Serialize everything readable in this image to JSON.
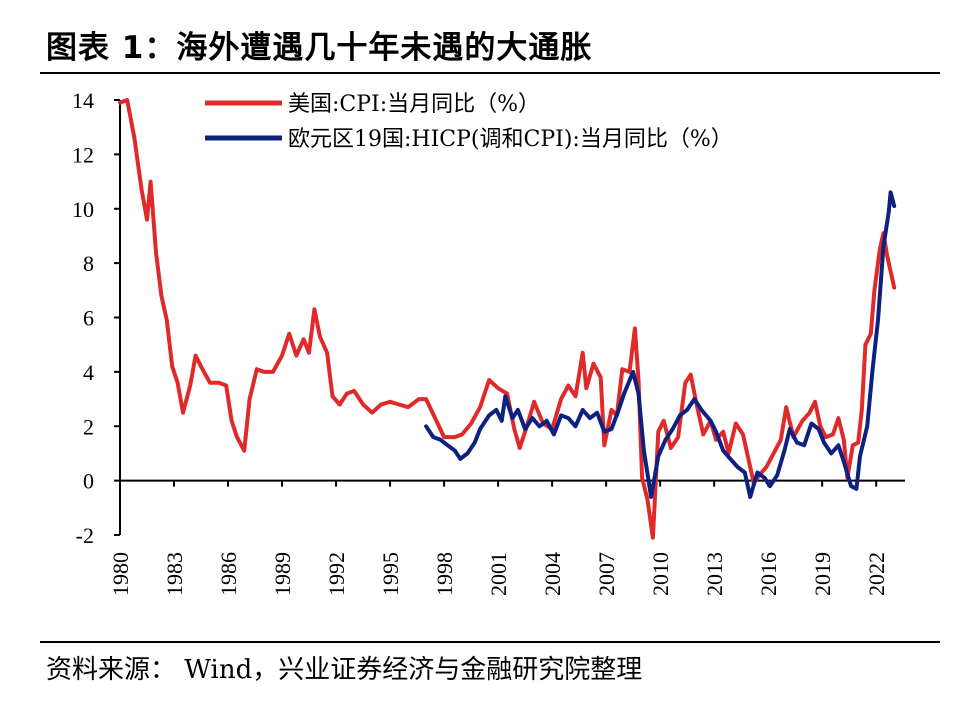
{
  "header": {
    "title": "图表 1：海外遭遇几十年未遇的大通胀"
  },
  "footer": {
    "source": "资料来源： Wind，兴业证券经济与金融研究院整理"
  },
  "chart_data": {
    "type": "line",
    "title": "图表 1：海外遭遇几十年未遇的大通胀",
    "xlabel": "",
    "ylabel": "",
    "ylim": [
      -2,
      14
    ],
    "y_ticks": [
      "14",
      "12",
      "10",
      "8",
      "6",
      "4",
      "2",
      "0",
      "-2"
    ],
    "x_ticks": [
      "1980",
      "1983",
      "1986",
      "1989",
      "1992",
      "1995",
      "1998",
      "2001",
      "2004",
      "2007",
      "2010",
      "2013",
      "2016",
      "2019",
      "2022"
    ],
    "grid": false,
    "legend_position": "top-center",
    "series": [
      {
        "name": "美国:CPI:当月同比（%）",
        "color": "#e02a2a",
        "points": [
          [
            1980.0,
            13.9
          ],
          [
            1980.4,
            14.0
          ],
          [
            1980.8,
            12.6
          ],
          [
            1981.2,
            10.7
          ],
          [
            1981.5,
            9.6
          ],
          [
            1981.7,
            11.0
          ],
          [
            1982.0,
            8.4
          ],
          [
            1982.3,
            6.8
          ],
          [
            1982.6,
            5.9
          ],
          [
            1982.9,
            4.2
          ],
          [
            1983.2,
            3.6
          ],
          [
            1983.5,
            2.5
          ],
          [
            1983.9,
            3.5
          ],
          [
            1984.2,
            4.6
          ],
          [
            1984.5,
            4.2
          ],
          [
            1985.0,
            3.6
          ],
          [
            1985.5,
            3.6
          ],
          [
            1985.9,
            3.5
          ],
          [
            1986.2,
            2.2
          ],
          [
            1986.5,
            1.6
          ],
          [
            1986.9,
            1.1
          ],
          [
            1987.2,
            3.0
          ],
          [
            1987.6,
            4.1
          ],
          [
            1988.0,
            4.0
          ],
          [
            1988.5,
            4.0
          ],
          [
            1989.0,
            4.6
          ],
          [
            1989.4,
            5.4
          ],
          [
            1989.8,
            4.6
          ],
          [
            1990.2,
            5.2
          ],
          [
            1990.5,
            4.7
          ],
          [
            1990.8,
            6.3
          ],
          [
            1991.1,
            5.3
          ],
          [
            1991.5,
            4.7
          ],
          [
            1991.8,
            3.1
          ],
          [
            1992.2,
            2.8
          ],
          [
            1992.6,
            3.2
          ],
          [
            1993.0,
            3.3
          ],
          [
            1993.5,
            2.8
          ],
          [
            1994.0,
            2.5
          ],
          [
            1994.5,
            2.8
          ],
          [
            1995.0,
            2.9
          ],
          [
            1995.5,
            2.8
          ],
          [
            1996.0,
            2.7
          ],
          [
            1996.6,
            3.0
          ],
          [
            1997.0,
            3.0
          ],
          [
            1997.5,
            2.3
          ],
          [
            1998.0,
            1.6
          ],
          [
            1998.6,
            1.6
          ],
          [
            1999.0,
            1.7
          ],
          [
            1999.5,
            2.1
          ],
          [
            2000.0,
            2.7
          ],
          [
            2000.5,
            3.7
          ],
          [
            2001.0,
            3.4
          ],
          [
            2001.5,
            3.2
          ],
          [
            2001.9,
            1.9
          ],
          [
            2002.2,
            1.2
          ],
          [
            2002.6,
            2.0
          ],
          [
            2003.0,
            2.9
          ],
          [
            2003.5,
            2.1
          ],
          [
            2004.0,
            1.9
          ],
          [
            2004.5,
            3.0
          ],
          [
            2004.9,
            3.5
          ],
          [
            2005.3,
            3.1
          ],
          [
            2005.7,
            4.7
          ],
          [
            2005.9,
            3.4
          ],
          [
            2006.3,
            4.3
          ],
          [
            2006.7,
            3.8
          ],
          [
            2006.9,
            1.3
          ],
          [
            2007.3,
            2.6
          ],
          [
            2007.6,
            2.4
          ],
          [
            2007.9,
            4.1
          ],
          [
            2008.3,
            4.0
          ],
          [
            2008.6,
            5.6
          ],
          [
            2008.8,
            3.7
          ],
          [
            2009.0,
            0.1
          ],
          [
            2009.3,
            -0.7
          ],
          [
            2009.6,
            -2.1
          ],
          [
            2009.9,
            1.8
          ],
          [
            2010.2,
            2.2
          ],
          [
            2010.6,
            1.2
          ],
          [
            2011.0,
            1.6
          ],
          [
            2011.4,
            3.6
          ],
          [
            2011.7,
            3.9
          ],
          [
            2012.0,
            2.9
          ],
          [
            2012.4,
            1.7
          ],
          [
            2012.8,
            2.2
          ],
          [
            2013.1,
            1.5
          ],
          [
            2013.5,
            1.8
          ],
          [
            2013.8,
            1.0
          ],
          [
            2014.2,
            2.1
          ],
          [
            2014.6,
            1.7
          ],
          [
            2014.9,
            0.8
          ],
          [
            2015.2,
            -0.1
          ],
          [
            2015.5,
            0.2
          ],
          [
            2015.9,
            0.5
          ],
          [
            2016.3,
            1.0
          ],
          [
            2016.7,
            1.5
          ],
          [
            2017.0,
            2.7
          ],
          [
            2017.4,
            1.6
          ],
          [
            2017.9,
            2.2
          ],
          [
            2018.3,
            2.5
          ],
          [
            2018.6,
            2.9
          ],
          [
            2018.9,
            2.0
          ],
          [
            2019.2,
            1.6
          ],
          [
            2019.6,
            1.7
          ],
          [
            2019.9,
            2.3
          ],
          [
            2020.2,
            1.5
          ],
          [
            2020.4,
            0.1
          ],
          [
            2020.7,
            1.3
          ],
          [
            2021.0,
            1.4
          ],
          [
            2021.2,
            2.6
          ],
          [
            2021.4,
            5.0
          ],
          [
            2021.7,
            5.4
          ],
          [
            2021.9,
            7.0
          ],
          [
            2022.2,
            8.5
          ],
          [
            2022.4,
            9.1
          ],
          [
            2022.6,
            8.3
          ],
          [
            2022.8,
            7.7
          ],
          [
            2023.0,
            7.1
          ]
        ]
      },
      {
        "name": "欧元区19国:HICP(调和CPI):当月同比（%）",
        "color": "#0d2181",
        "points": [
          [
            1997.0,
            2.0
          ],
          [
            1997.4,
            1.6
          ],
          [
            1997.8,
            1.5
          ],
          [
            1998.2,
            1.3
          ],
          [
            1998.6,
            1.1
          ],
          [
            1998.9,
            0.8
          ],
          [
            1999.3,
            1.0
          ],
          [
            1999.7,
            1.4
          ],
          [
            2000.0,
            1.9
          ],
          [
            2000.5,
            2.4
          ],
          [
            2000.9,
            2.6
          ],
          [
            2001.2,
            2.2
          ],
          [
            2001.4,
            3.1
          ],
          [
            2001.8,
            2.3
          ],
          [
            2002.1,
            2.6
          ],
          [
            2002.5,
            1.9
          ],
          [
            2002.9,
            2.3
          ],
          [
            2003.3,
            2.0
          ],
          [
            2003.7,
            2.2
          ],
          [
            2004.1,
            1.7
          ],
          [
            2004.5,
            2.4
          ],
          [
            2004.9,
            2.3
          ],
          [
            2005.3,
            2.0
          ],
          [
            2005.7,
            2.6
          ],
          [
            2006.1,
            2.3
          ],
          [
            2006.5,
            2.5
          ],
          [
            2006.9,
            1.8
          ],
          [
            2007.3,
            1.9
          ],
          [
            2007.7,
            2.6
          ],
          [
            2008.0,
            3.2
          ],
          [
            2008.5,
            4.0
          ],
          [
            2008.8,
            3.2
          ],
          [
            2009.1,
            1.1
          ],
          [
            2009.5,
            -0.6
          ],
          [
            2009.9,
            0.9
          ],
          [
            2010.3,
            1.5
          ],
          [
            2010.7,
            1.9
          ],
          [
            2011.1,
            2.4
          ],
          [
            2011.5,
            2.6
          ],
          [
            2011.9,
            3.0
          ],
          [
            2012.3,
            2.6
          ],
          [
            2012.8,
            2.2
          ],
          [
            2013.1,
            1.8
          ],
          [
            2013.5,
            1.1
          ],
          [
            2013.9,
            0.8
          ],
          [
            2014.3,
            0.5
          ],
          [
            2014.7,
            0.3
          ],
          [
            2015.0,
            -0.6
          ],
          [
            2015.4,
            0.3
          ],
          [
            2015.8,
            0.1
          ],
          [
            2016.1,
            -0.2
          ],
          [
            2016.5,
            0.2
          ],
          [
            2016.9,
            1.1
          ],
          [
            2017.2,
            1.9
          ],
          [
            2017.6,
            1.4
          ],
          [
            2018.0,
            1.3
          ],
          [
            2018.4,
            2.1
          ],
          [
            2018.8,
            1.9
          ],
          [
            2019.1,
            1.4
          ],
          [
            2019.5,
            1.0
          ],
          [
            2019.9,
            1.3
          ],
          [
            2020.2,
            0.7
          ],
          [
            2020.6,
            -0.2
          ],
          [
            2020.9,
            -0.3
          ],
          [
            2021.1,
            0.9
          ],
          [
            2021.5,
            2.0
          ],
          [
            2021.8,
            4.1
          ],
          [
            2022.1,
            5.9
          ],
          [
            2022.4,
            8.6
          ],
          [
            2022.7,
            9.9
          ],
          [
            2022.8,
            10.6
          ],
          [
            2023.0,
            10.1
          ]
        ]
      }
    ]
  }
}
